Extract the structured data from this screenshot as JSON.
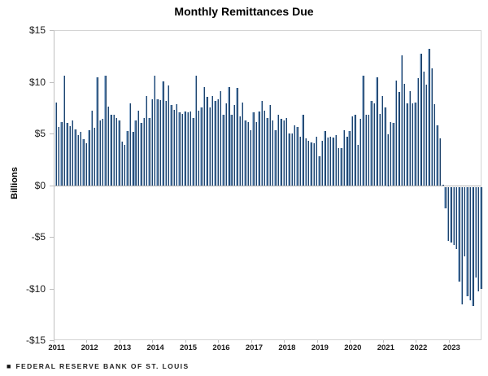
{
  "title": "Monthly Remittances Due",
  "footer": {
    "bullet": "■",
    "text": "FEDERAL RESERVE BANK OF ST. LOUIS"
  },
  "colors": {
    "bar_light": "#a3bdd8",
    "bar_mid": "#39689c",
    "bar_dark": "#102a47",
    "axis_border": "#d4d4d4",
    "zero_line": "#b3b3b3",
    "text": "#000000"
  },
  "chart_data": {
    "type": "bar",
    "title": "Monthly Remittances Due",
    "xlabel": "",
    "ylabel": "Billions",
    "unit": "billions of dollars",
    "ylim": [
      -15,
      15
    ],
    "ytick_values": [
      15,
      10,
      5,
      0,
      -5,
      -10,
      -15
    ],
    "ytick_labels": [
      "$15",
      "$10",
      "$5",
      "$0",
      "-$5",
      "-$10",
      "-$15"
    ],
    "grid": false,
    "legend_position": "none",
    "frequency": "monthly",
    "start_month": "2011-01",
    "end_month": "2023-12",
    "years": [
      "2011",
      "2012",
      "2013",
      "2014",
      "2015",
      "2016",
      "2017",
      "2018",
      "2019",
      "2020",
      "2021",
      "2022",
      "2023"
    ],
    "values_by_year": {
      "2011": [
        8.1,
        5.7,
        6.2,
        10.7,
        6.1,
        5.8,
        6.3,
        5.5,
        4.9,
        5.2,
        4.5,
        4.1
      ],
      "2012": [
        5.4,
        7.3,
        5.6,
        10.5,
        6.3,
        6.5,
        10.7,
        7.7,
        6.9,
        6.9,
        6.6,
        6.3
      ],
      "2013": [
        4.3,
        4.0,
        5.3,
        8.0,
        5.2,
        6.3,
        7.3,
        6.1,
        6.6,
        8.7,
        6.6,
        8.4
      ],
      "2014": [
        10.7,
        8.4,
        8.3,
        10.1,
        8.2,
        9.7,
        7.8,
        7.4,
        7.9,
        7.1,
        7.0,
        7.2
      ],
      "2015": [
        7.1,
        7.2,
        6.6,
        10.7,
        7.3,
        7.6,
        9.6,
        8.6,
        7.6,
        8.7,
        8.2,
        8.4
      ],
      "2016": [
        9.2,
        6.9,
        8.0,
        9.6,
        6.9,
        7.8,
        9.5,
        6.7,
        8.1,
        6.3,
        6.2,
        5.4
      ],
      "2017": [
        7.1,
        6.2,
        7.2,
        8.2,
        7.3,
        6.6,
        7.8,
        6.3,
        5.4,
        6.9,
        6.5,
        6.3
      ],
      "2018": [
        6.6,
        5.1,
        5.1,
        5.9,
        5.7,
        4.8,
        6.9,
        4.6,
        4.4,
        4.2,
        4.1,
        4.8
      ],
      "2019": [
        2.9,
        4.4,
        5.3,
        4.7,
        4.8,
        4.7,
        4.9,
        3.7,
        3.7,
        5.4,
        4.8,
        5.3
      ],
      "2020": [
        6.7,
        6.9,
        4.0,
        6.5,
        10.7,
        6.9,
        6.9,
        8.2,
        8.0,
        10.5,
        7.0,
        8.7
      ],
      "2021": [
        7.6,
        5.0,
        6.2,
        6.1,
        10.2,
        9.1,
        12.6,
        9.9,
        8.0,
        9.2,
        8.0,
        8.1
      ],
      "2022": [
        10.4,
        12.8,
        11.1,
        9.8,
        13.3,
        11.4,
        7.9,
        5.9,
        4.6,
        0.1,
        -2.1,
        -5.2
      ],
      "2023": [
        -5.4,
        -5.6,
        -6.0,
        -9.2,
        -11.4,
        -6.7,
        -10.6,
        -11.0,
        -11.5,
        -8.8,
        -10.1,
        -9.9
      ]
    }
  }
}
